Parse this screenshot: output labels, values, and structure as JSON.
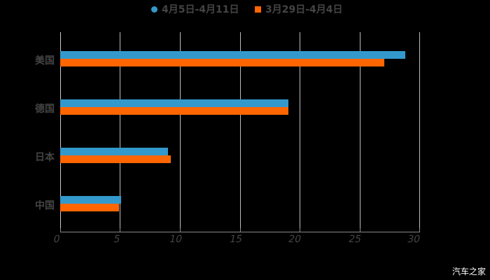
{
  "legend": [
    {
      "label": "4月5日-4月11日",
      "color": "#3399cc",
      "shape": "circle"
    },
    {
      "label": "3月29日-4月4日",
      "color": "#ff6600",
      "shape": "square"
    }
  ],
  "watermark": "汽车之家",
  "xaxis": {
    "ticks": [
      "0",
      "5",
      "10",
      "15",
      "20",
      "25",
      "30"
    ]
  },
  "categories": [
    "美国",
    "德国",
    "日本",
    "中国"
  ],
  "chart_data": {
    "type": "bar",
    "orientation": "horizontal",
    "title": "",
    "xlabel": "",
    "ylabel": "",
    "categories": [
      "美国",
      "德国",
      "日本",
      "中国"
    ],
    "series": [
      {
        "name": "4月5日-4月11日",
        "color": "#3399cc",
        "values": [
          28.8,
          19.0,
          9.0,
          5.1
        ]
      },
      {
        "name": "3月29日-4月4日",
        "color": "#ff6600",
        "values": [
          27.0,
          19.0,
          9.2,
          4.9
        ]
      }
    ],
    "xlim": [
      0,
      30
    ],
    "xticks": [
      0,
      5,
      10,
      15,
      20,
      25,
      30
    ],
    "grid": "vertical",
    "legend_position": "top"
  }
}
